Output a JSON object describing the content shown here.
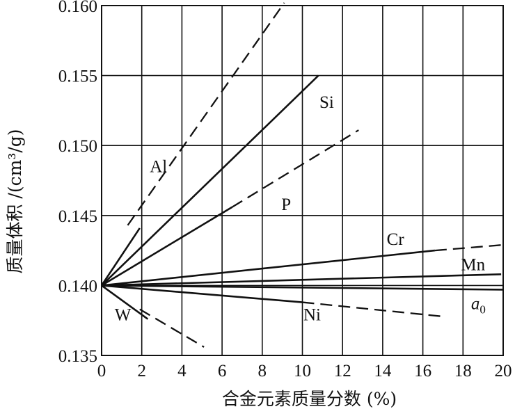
{
  "chart_data": {
    "type": "line",
    "title": "",
    "xlabel": "合金元素质量分数 (%)",
    "ylabel": "质量体积 /(cm³/g)",
    "xlim": [
      0,
      20
    ],
    "ylim": [
      0.135,
      0.16
    ],
    "x_ticks": [
      {
        "value": 0,
        "label": "0"
      },
      {
        "value": 2,
        "label": "2"
      },
      {
        "value": 4,
        "label": "4"
      },
      {
        "value": 6,
        "label": "6"
      },
      {
        "value": 8,
        "label": "8"
      },
      {
        "value": 10,
        "label": "10"
      },
      {
        "value": 12,
        "label": "12"
      },
      {
        "value": 14,
        "label": "14"
      },
      {
        "value": 16,
        "label": "16"
      },
      {
        "value": 18,
        "label": "18"
      },
      {
        "value": 20,
        "label": "20"
      }
    ],
    "y_ticks": [
      {
        "value": 0.135,
        "label": "0.135"
      },
      {
        "value": 0.14,
        "label": "0.140"
      },
      {
        "value": 0.145,
        "label": "0.145"
      },
      {
        "value": 0.15,
        "label": "0.150"
      },
      {
        "value": 0.155,
        "label": "0.155"
      },
      {
        "value": 0.16,
        "label": "0.160"
      }
    ],
    "grid": true,
    "series": [
      {
        "name": "Al",
        "label_html": "Al",
        "label_pos": [
          2.4,
          0.1481
        ],
        "solid": [
          [
            0,
            0.14
          ],
          [
            1.9,
            0.1441
          ]
        ],
        "dashed": [
          [
            1.3,
            0.1443
          ],
          [
            9.1,
            0.1602
          ]
        ]
      },
      {
        "name": "Si",
        "label_html": "Si",
        "label_pos": [
          10.85,
          0.1527
        ],
        "solid": [
          [
            0,
            0.14
          ],
          [
            10.8,
            0.155
          ]
        ],
        "dashed": []
      },
      {
        "name": "P",
        "label_html": "P",
        "label_pos": [
          8.95,
          0.1454
        ],
        "solid": [
          [
            0,
            0.14
          ],
          [
            6.5,
            0.1456
          ]
        ],
        "dashed": [
          [
            6.5,
            0.1456
          ],
          [
            12.8,
            0.1511
          ]
        ]
      },
      {
        "name": "Cr",
        "label_html": "Cr",
        "label_pos": [
          14.2,
          0.1429
        ],
        "solid": [
          [
            0,
            0.14
          ],
          [
            16.6,
            0.1425
          ]
        ],
        "dashed": [
          [
            16.6,
            0.1425
          ],
          [
            20,
            0.1429
          ]
        ]
      },
      {
        "name": "Mn",
        "label_html": "Mn",
        "label_pos": [
          17.9,
          0.1411
        ],
        "solid": [
          [
            0,
            0.14
          ],
          [
            19.9,
            0.1408
          ]
        ],
        "dashed": []
      },
      {
        "name": "a0",
        "label_html": "a<tspan font-size='16px' dy='6'>0</tspan>",
        "label_pos": [
          18.4,
          0.1383
        ],
        "solid": [
          [
            0,
            0.14
          ],
          [
            20,
            0.1397
          ]
        ],
        "dashed": []
      },
      {
        "name": "Ni",
        "label_html": "Ni",
        "label_pos": [
          10.05,
          0.1375
        ],
        "solid": [
          [
            0,
            0.14
          ],
          [
            10,
            0.1388
          ]
        ],
        "dashed": [
          [
            10,
            0.1388
          ],
          [
            16.9,
            0.1378
          ]
        ]
      },
      {
        "name": "W",
        "label_html": "W",
        "label_pos": [
          0.65,
          0.1375
        ],
        "solid": [
          [
            0,
            0.14
          ],
          [
            2.3,
            0.1376
          ]
        ],
        "dashed": [
          [
            1.9,
            0.1383
          ],
          [
            5.1,
            0.1356
          ]
        ]
      }
    ]
  }
}
